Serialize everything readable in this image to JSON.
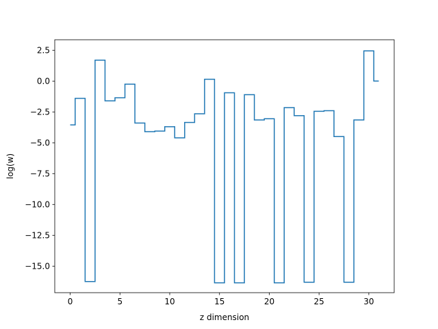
{
  "chart_data": {
    "type": "line",
    "drawstyle": "steps-mid",
    "title": "",
    "xlabel": "z dimension",
    "ylabel": "log(w)",
    "xlim": [
      -1.55,
      32.55
    ],
    "ylim": [
      -17.15,
      3.35
    ],
    "x_ticks": [
      0,
      5,
      10,
      15,
      20,
      25,
      30
    ],
    "x_tick_labels": [
      "0",
      "5",
      "10",
      "15",
      "20",
      "25",
      "30"
    ],
    "y_ticks": [
      2.5,
      0.0,
      -2.5,
      -5.0,
      -7.5,
      -10.0,
      -12.5,
      -15.0
    ],
    "y_tick_labels": [
      "2.5",
      "0.0",
      "−2.5",
      "−5.0",
      "−7.5",
      "−10.0",
      "−12.5",
      "−15.0"
    ],
    "grid": false,
    "color": "#1f77b4",
    "x": [
      0,
      1,
      2,
      3,
      4,
      5,
      6,
      7,
      8,
      9,
      10,
      11,
      12,
      13,
      14,
      15,
      16,
      17,
      18,
      19,
      20,
      21,
      22,
      23,
      24,
      25,
      26,
      27,
      28,
      29,
      30,
      31
    ],
    "values": [
      -3.55,
      -1.4,
      -16.25,
      1.7,
      -1.6,
      -1.35,
      -0.25,
      -3.4,
      -4.1,
      -4.05,
      -3.7,
      -4.6,
      -3.35,
      -2.65,
      0.15,
      -16.35,
      -0.95,
      -16.35,
      -1.1,
      -3.15,
      -3.05,
      -16.35,
      -2.15,
      -2.8,
      -16.3,
      -2.45,
      -2.4,
      -4.5,
      -16.3,
      -3.15,
      2.45,
      0.0
    ]
  }
}
